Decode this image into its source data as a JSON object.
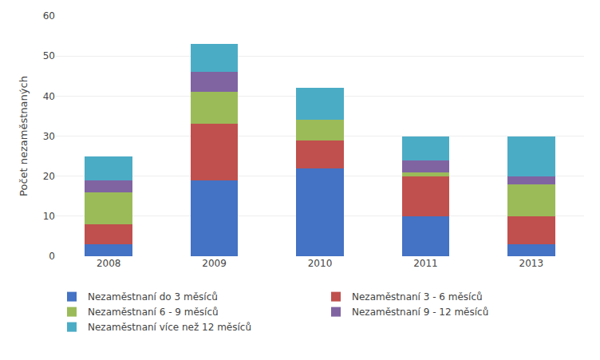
{
  "chart_data": {
    "type": "bar",
    "stacked": true,
    "categories": [
      "2008",
      "2009",
      "2010",
      "2011",
      "2013"
    ],
    "series": [
      {
        "name": "Nezaměstnaní do 3 měsíců",
        "color": "#4472C4",
        "values": [
          3,
          19,
          22,
          10,
          3
        ]
      },
      {
        "name": "Nezaměstnaní 3 - 6 měsíců",
        "color": "#C0504D",
        "values": [
          5,
          14,
          7,
          10,
          7
        ]
      },
      {
        "name": "Nezaměstnaní 6 - 9 měsíců",
        "color": "#9BBB59",
        "values": [
          8,
          8,
          5,
          1,
          8
        ]
      },
      {
        "name": "Nezaměstnaní 9 - 12 měsíců",
        "color": "#8064A2",
        "values": [
          3,
          5,
          0,
          3,
          2
        ]
      },
      {
        "name": "Nezaměstnaní více než 12 měsíců",
        "color": "#4BACC6",
        "values": [
          6,
          7,
          8,
          6,
          10
        ]
      }
    ],
    "ylabel": "Počet nezaměstnaných",
    "ylim": [
      0,
      60
    ],
    "yticks": [
      0,
      10,
      20,
      30,
      40,
      50,
      60
    ],
    "grid": true,
    "legend": "bottom"
  }
}
